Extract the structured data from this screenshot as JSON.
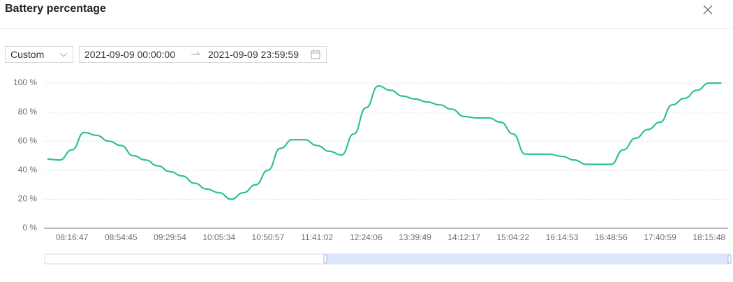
{
  "header": {
    "title": "Battery percentage"
  },
  "filter": {
    "mode": "Custom",
    "start": "2021-09-09 00:00:00",
    "end": "2021-09-09 23:59:59"
  },
  "chart_data": {
    "type": "line",
    "categories": [
      null,
      null,
      "08:16:47",
      null,
      null,
      null,
      "08:54:45",
      null,
      null,
      null,
      "09:29:54",
      null,
      null,
      null,
      "10:05:34",
      null,
      null,
      null,
      "10:50:57",
      null,
      null,
      null,
      "11:41:02",
      null,
      null,
      null,
      "12:24:06",
      null,
      null,
      null,
      "13:39:49",
      null,
      null,
      null,
      "14:12:17",
      null,
      null,
      null,
      "15:04:22",
      null,
      null,
      null,
      "16:14:53",
      null,
      null,
      null,
      "16:48:56",
      null,
      null,
      null,
      "17:40:59",
      null,
      null,
      null,
      "18:15:48",
      null
    ],
    "values": [
      47.6,
      47,
      54,
      66,
      64,
      60,
      57,
      50,
      47,
      43,
      39,
      36,
      31,
      27,
      24.5,
      20,
      24.5,
      30,
      40,
      55,
      61,
      61,
      57,
      53,
      50.5,
      65,
      83,
      98,
      95,
      91,
      89,
      87,
      85,
      82,
      77,
      76,
      76,
      73,
      65,
      51,
      51,
      51,
      49.5,
      47,
      44,
      44,
      44,
      54,
      62,
      68,
      73,
      85,
      89.5,
      95,
      100,
      100
    ],
    "color": "#2fc18f",
    "ylim": [
      0,
      100
    ],
    "yticks": [
      {
        "value": 0,
        "label": "0 %"
      },
      {
        "value": 20,
        "label": "20 %"
      },
      {
        "value": 40,
        "label": "40 %"
      },
      {
        "value": 60,
        "label": "60 %"
      },
      {
        "value": 80,
        "label": "80 %"
      },
      {
        "value": 100,
        "label": "100 %"
      }
    ],
    "grid": true
  }
}
